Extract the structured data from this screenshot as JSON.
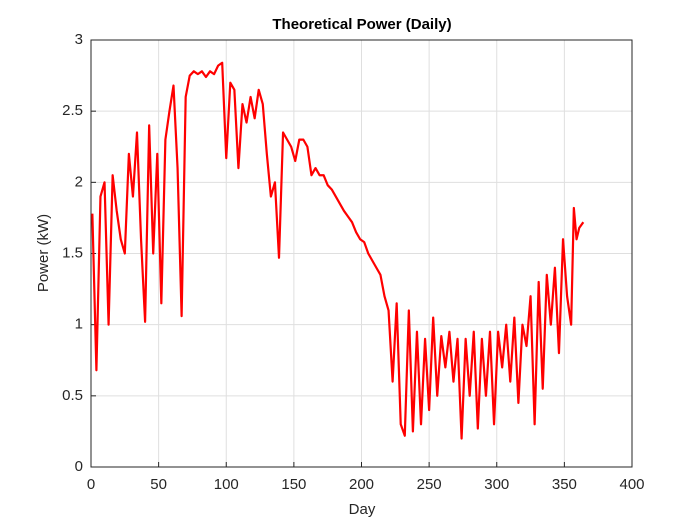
{
  "chart_data": {
    "type": "line",
    "title": "Theoretical Power (Daily)",
    "xlabel": "Day",
    "ylabel": "Power (kW)",
    "x": [
      1,
      4,
      7,
      10,
      13,
      16,
      19,
      22,
      25,
      28,
      31,
      34,
      37,
      40,
      43,
      46,
      49,
      52,
      55,
      58,
      61,
      64,
      67,
      70,
      73,
      76,
      79,
      82,
      85,
      88,
      91,
      94,
      97,
      100,
      103,
      106,
      109,
      112,
      115,
      118,
      121,
      124,
      127,
      130,
      133,
      136,
      139,
      142,
      145,
      148,
      151,
      154,
      157,
      160,
      163,
      166,
      169,
      172,
      175,
      178,
      181,
      184,
      187,
      190,
      193,
      196,
      199,
      202,
      205,
      208,
      211,
      214,
      217,
      220,
      223,
      226,
      229,
      232,
      235,
      238,
      241,
      244,
      247,
      250,
      253,
      256,
      259,
      262,
      265,
      268,
      271,
      274,
      277,
      280,
      283,
      286,
      289,
      292,
      295,
      298,
      301,
      304,
      307,
      310,
      313,
      316,
      319,
      322,
      325,
      328,
      331,
      334,
      337,
      340,
      343,
      346,
      349,
      352,
      355,
      357,
      359,
      361,
      364
    ],
    "series": [
      {
        "name": "Power",
        "color": "#ff0000",
        "values": [
          1.78,
          0.68,
          1.9,
          2.0,
          1.0,
          2.05,
          1.8,
          1.6,
          1.5,
          2.2,
          1.9,
          2.35,
          1.6,
          1.02,
          2.4,
          1.5,
          2.2,
          1.15,
          2.3,
          2.5,
          2.68,
          2.1,
          1.06,
          2.6,
          2.75,
          2.78,
          2.76,
          2.78,
          2.74,
          2.78,
          2.76,
          2.82,
          2.84,
          2.17,
          2.7,
          2.65,
          2.1,
          2.55,
          2.42,
          2.6,
          2.45,
          2.65,
          2.55,
          2.2,
          1.9,
          2.0,
          1.47,
          2.35,
          2.3,
          2.25,
          2.15,
          2.3,
          2.3,
          2.25,
          2.05,
          2.1,
          2.05,
          2.05,
          1.98,
          1.95,
          1.9,
          1.85,
          1.8,
          1.76,
          1.72,
          1.65,
          1.6,
          1.58,
          1.5,
          1.45,
          1.4,
          1.35,
          1.2,
          1.1,
          0.6,
          1.15,
          0.3,
          0.22,
          1.1,
          0.25,
          0.95,
          0.3,
          0.9,
          0.4,
          1.05,
          0.5,
          0.92,
          0.7,
          0.95,
          0.6,
          0.9,
          0.2,
          0.9,
          0.5,
          0.95,
          0.27,
          0.9,
          0.5,
          0.95,
          0.3,
          0.95,
          0.7,
          1.0,
          0.6,
          1.05,
          0.45,
          1.0,
          0.85,
          1.2,
          0.3,
          1.3,
          0.55,
          1.35,
          1.0,
          1.4,
          0.8,
          1.6,
          1.2,
          1.0,
          1.82,
          1.6,
          1.68,
          1.72
        ]
      }
    ],
    "xlim": [
      0,
      400
    ],
    "xticks": [
      0,
      50,
      100,
      150,
      200,
      250,
      300,
      350,
      400
    ],
    "ylim": [
      0,
      3
    ],
    "yticks": [
      0,
      0.5,
      1,
      1.5,
      2,
      2.5,
      3
    ],
    "grid": true
  }
}
